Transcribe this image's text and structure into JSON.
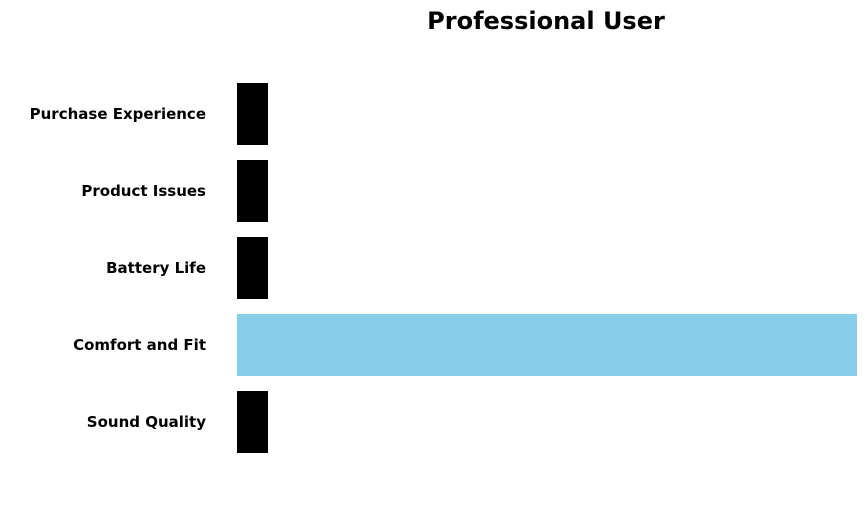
{
  "chart_data": {
    "type": "bar",
    "orientation": "horizontal",
    "title": "Professional User",
    "xlabel": "",
    "ylabel": "",
    "categories": [
      "Purchase Experience",
      "Product Issues",
      "Battery Life",
      "Comfort and Fit",
      "Sound Quality"
    ],
    "values": [
      0.05,
      0.05,
      0.05,
      1.0,
      0.05
    ],
    "xlim": [
      0,
      1.0
    ],
    "colors": [
      "#000000",
      "#000000",
      "#000000",
      "#87CEEB",
      "#000000"
    ],
    "highlight_category": "Comfort and Fit",
    "highlight_color": "#87CEEB",
    "base_color": "#000000",
    "grid": false,
    "axes_visible": false
  }
}
